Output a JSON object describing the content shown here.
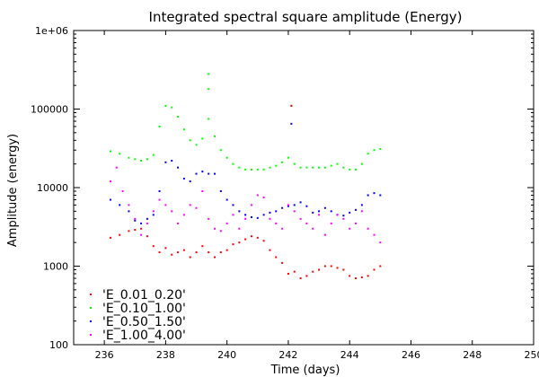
{
  "chart_data": {
    "type": "scatter",
    "title": "Integrated spectral square amplitude (Energy)",
    "xlabel": "Time (days)",
    "ylabel": "Amplitude (energy)",
    "xlim": [
      235,
      250
    ],
    "ylim": [
      100,
      1000000
    ],
    "yscale": "log",
    "x_ticks": [
      236,
      238,
      240,
      242,
      244,
      246,
      248,
      250
    ],
    "y_ticks": [
      100,
      1000,
      10000,
      100000,
      1000000
    ],
    "y_tick_labels": [
      "100",
      "1000",
      "10000",
      "100000",
      "1e+06"
    ],
    "legend_position": "bottom-left",
    "series": [
      {
        "name": "'E_0.01_0.20'",
        "color": "#ff0000",
        "x": [
          236.2,
          236.5,
          236.8,
          237.0,
          237.2,
          237.4,
          237.6,
          237.8,
          238.0,
          238.2,
          238.4,
          238.6,
          238.8,
          239.0,
          239.2,
          239.4,
          239.6,
          239.8,
          240.0,
          240.2,
          240.4,
          240.6,
          240.8,
          241.0,
          241.2,
          241.4,
          241.6,
          241.8,
          242.0,
          242.2,
          242.4,
          242.6,
          242.8,
          243.0,
          243.2,
          243.4,
          243.6,
          243.8,
          244.0,
          244.2,
          244.4,
          244.6,
          244.8,
          245.0
        ],
        "y": [
          2300,
          2500,
          2800,
          2900,
          3000,
          2400,
          1800,
          1500,
          1700,
          1400,
          1500,
          1600,
          1300,
          1500,
          1800,
          1500,
          1300,
          1500,
          1600,
          1900,
          2000,
          2200,
          2400,
          2300,
          2100,
          1600,
          1300,
          1100,
          800,
          850,
          700,
          750,
          850,
          900,
          1000,
          1000,
          950,
          900,
          750,
          700,
          720,
          750,
          900,
          1000
        ]
      },
      {
        "name": "'E_0.10_1.00'",
        "color": "#00ff00",
        "x": [
          236.2,
          236.5,
          236.8,
          237.0,
          237.2,
          237.4,
          237.6,
          237.8,
          238.0,
          238.2,
          238.4,
          238.6,
          238.8,
          239.0,
          239.2,
          239.4,
          239.6,
          239.8,
          240.0,
          240.2,
          240.4,
          240.6,
          240.8,
          241.0,
          241.2,
          241.4,
          241.6,
          241.8,
          242.0,
          242.2,
          242.4,
          242.6,
          242.8,
          243.0,
          243.2,
          243.4,
          243.6,
          243.8,
          244.0,
          244.2,
          244.4,
          244.6,
          244.8,
          245.0
        ],
        "y": [
          29000,
          27000,
          24000,
          23000,
          22000,
          23000,
          26000,
          60000,
          110000,
          105000,
          80000,
          55000,
          40000,
          35000,
          42000,
          75000,
          45000,
          30000,
          24000,
          20000,
          18000,
          17000,
          17000,
          17000,
          17000,
          18000,
          19000,
          21000,
          24000,
          20000,
          18000,
          18000,
          18000,
          18000,
          18000,
          19000,
          20000,
          18000,
          17000,
          17000,
          20000,
          27000,
          30000,
          31000
        ]
      },
      {
        "name": "'E_0.50_1.50'",
        "color": "#0000ff",
        "x": [
          236.2,
          236.5,
          236.8,
          237.0,
          237.2,
          237.4,
          237.6,
          237.8,
          238.0,
          238.2,
          238.4,
          238.6,
          238.8,
          239.0,
          239.2,
          239.4,
          239.6,
          239.8,
          240.0,
          240.2,
          240.4,
          240.6,
          240.8,
          241.0,
          241.2,
          241.4,
          241.6,
          241.8,
          242.0,
          242.2,
          242.4,
          242.6,
          242.8,
          243.0,
          243.2,
          243.4,
          243.6,
          243.8,
          244.0,
          244.2,
          244.4,
          244.6,
          244.8,
          245.0
        ],
        "y": [
          7000,
          6000,
          5000,
          3800,
          3500,
          4000,
          4500,
          9000,
          21000,
          22000,
          18000,
          13000,
          12000,
          15000,
          16000,
          15000,
          15000,
          9000,
          7000,
          6000,
          5000,
          4500,
          4200,
          4100,
          4500,
          4800,
          5000,
          5500,
          5800,
          6000,
          6500,
          5800,
          4800,
          5000,
          5500,
          5000,
          4500,
          4400,
          4800,
          5200,
          6000,
          8000,
          8500,
          8000
        ]
      },
      {
        "name": "'E_1.00_4.00'",
        "color": "#ff00ff",
        "x": [
          236.2,
          236.4,
          236.6,
          236.8,
          237.0,
          237.2,
          237.4,
          237.6,
          237.8,
          238.0,
          238.2,
          238.4,
          238.6,
          238.8,
          239.0,
          239.2,
          239.4,
          239.6,
          239.8,
          240.0,
          240.2,
          240.4,
          240.6,
          240.8,
          241.0,
          241.2,
          241.4,
          241.6,
          241.8,
          242.0,
          242.2,
          242.4,
          242.6,
          242.8,
          243.0,
          243.2,
          243.4,
          243.6,
          243.8,
          244.0,
          244.2,
          244.4,
          244.6,
          244.8,
          245.0
        ],
        "y": [
          12000,
          18000,
          9000,
          6000,
          4000,
          2500,
          3500,
          5000,
          7000,
          6000,
          5000,
          3500,
          4500,
          6000,
          5500,
          9000,
          4000,
          3000,
          2800,
          3500,
          4500,
          3000,
          4000,
          6000,
          8000,
          7500,
          4000,
          3500,
          3000,
          6000,
          5000,
          4000,
          3500,
          3000,
          4500,
          2500,
          3500,
          4500,
          4000,
          3000,
          3500,
          5000,
          3000,
          2500,
          2000
        ]
      }
    ],
    "outliers": [
      {
        "series": 1,
        "x": 239.4,
        "y": 280000
      },
      {
        "series": 1,
        "x": 239.4,
        "y": 180000
      },
      {
        "series": 1,
        "x": 242.1,
        "y": 110000
      },
      {
        "series": 2,
        "x": 242.1,
        "y": 65000
      },
      {
        "series": 0,
        "x": 242.1,
        "y": 110000
      }
    ]
  }
}
